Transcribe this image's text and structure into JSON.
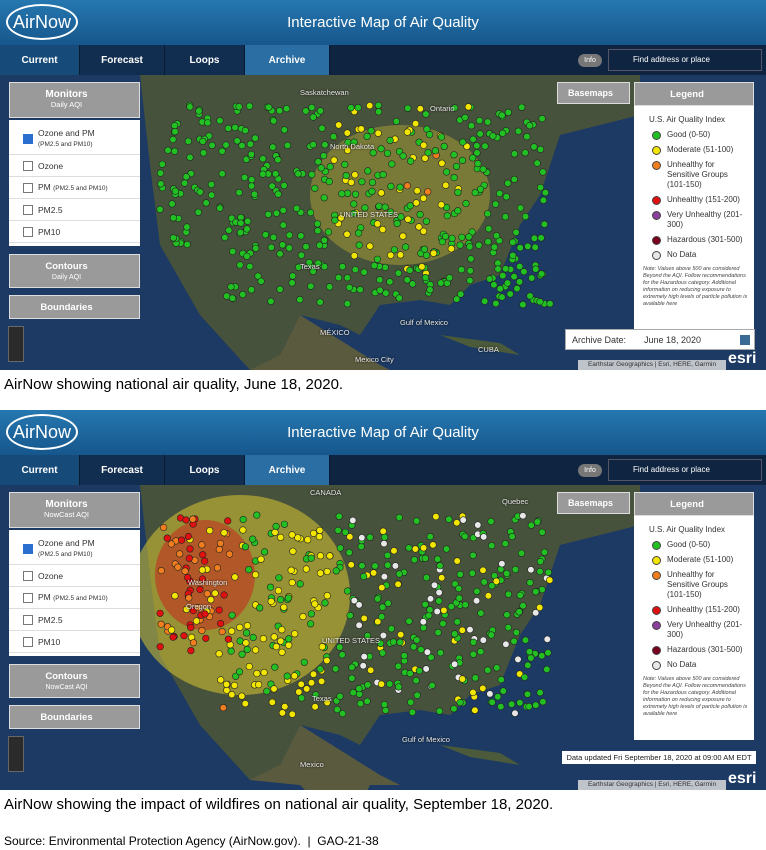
{
  "panels": [
    {
      "header": {
        "logo": "AirNow",
        "title": "Interactive Map of Air Quality"
      },
      "tabs": [
        "Current",
        "Forecast",
        "Loops",
        "Archive"
      ],
      "info": "Info",
      "search": "Find address or place",
      "monitors": {
        "title": "Monitors",
        "subtitle": "Daily AQI",
        "options": [
          {
            "label": "Ozone and PM",
            "sub": "(PM2.5 and PM10)"
          },
          {
            "label": "Ozone"
          },
          {
            "label": "PM",
            "sub": "(PM2.5 and PM10)"
          },
          {
            "label": "PM2.5"
          },
          {
            "label": "PM10"
          }
        ]
      },
      "contours": {
        "title": "Contours",
        "subtitle": "Daily AQI"
      },
      "boundaries": "Boundaries",
      "basemaps": "Basemaps",
      "legend": {
        "title": "Legend",
        "heading": "U.S. Air Quality Index",
        "items": [
          {
            "label": "Good (0-50)",
            "color": "#22c022"
          },
          {
            "label": "Moderate (51-100)",
            "color": "#f2e600"
          },
          {
            "label": "Unhealthy for Sensitive Groups (101-150)",
            "color": "#f07e1e"
          },
          {
            "label": "Unhealthy (151-200)",
            "color": "#e01010"
          },
          {
            "label": "Very Unhealthy (201-300)",
            "color": "#8a3f9a"
          },
          {
            "label": "Hazardous (301-500)",
            "color": "#7a0020"
          },
          {
            "label": "No Data",
            "color": "#e8e8e8"
          }
        ],
        "note": "Note: Values above 500 are considered Beyond the AQI. Follow recommendations for the Hazardous category. Additional information on reducing exposure to extremely high levels of particle pollution is available here"
      },
      "status": {
        "label": "Archive Date:",
        "value": "June 18, 2020"
      },
      "attribution": "Earthstar Geographics | Esri, HERE, Garmin",
      "esri": "esri",
      "map_labels": [
        "Saskatchewan",
        "Ontario",
        "North Dakota",
        "UNITED STATES",
        "Texas",
        "MÉXICO",
        "Gulf of Mexico",
        "CUBA",
        "Mexico City"
      ],
      "caption": "AirNow showing national air quality, June 18, 2020."
    },
    {
      "header": {
        "logo": "AirNow",
        "title": "Interactive Map of Air Quality"
      },
      "tabs": [
        "Current",
        "Forecast",
        "Loops",
        "Archive"
      ],
      "info": "Info",
      "search": "Find address or place",
      "monitors": {
        "title": "Monitors",
        "subtitle": "NowCast AQI",
        "options": [
          {
            "label": "Ozone and PM",
            "sub": "(PM2.5 and PM10)"
          },
          {
            "label": "Ozone"
          },
          {
            "label": "PM",
            "sub": "(PM2.5 and PM10)"
          },
          {
            "label": "PM2.5"
          },
          {
            "label": "PM10"
          }
        ]
      },
      "contours": {
        "title": "Contours",
        "subtitle": "NowCast AQI"
      },
      "boundaries": "Boundaries",
      "basemaps": "Basemaps",
      "legend": {
        "title": "Legend",
        "heading": "U.S. Air Quality Index",
        "items": [
          {
            "label": "Good (0-50)",
            "color": "#22c022"
          },
          {
            "label": "Moderate (51-100)",
            "color": "#f2e600"
          },
          {
            "label": "Unhealthy for Sensitive Groups (101-150)",
            "color": "#f07e1e"
          },
          {
            "label": "Unhealthy (151-200)",
            "color": "#e01010"
          },
          {
            "label": "Very Unhealthy (201-300)",
            "color": "#8a3f9a"
          },
          {
            "label": "Hazardous (301-500)",
            "color": "#7a0020"
          },
          {
            "label": "No Data",
            "color": "#e8e8e8"
          }
        ],
        "note": "Note: Values above 500 are considered Beyond the AQI. Follow recommendations for the Hazardous category. Additional information on reducing exposure to extremely high levels of particle pollution is available here"
      },
      "status": {
        "value": "Data updated Fri September 18, 2020 at 09:00 AM EDT"
      },
      "attribution": "Earthstar Geographics | Esri, HERE, Garmin",
      "esri": "esri",
      "map_labels": [
        "CANADA",
        "Quebec",
        "Washington",
        "Oregon",
        "UNITED STATES",
        "Texas",
        "Gulf of Mexico",
        "Mexico"
      ],
      "caption": "AirNow showing the impact of wildfires on national air quality, September 18, 2020."
    }
  ],
  "source": "Source: Environmental Protection Agency (AirNow.gov).  |  GAO-21-38"
}
